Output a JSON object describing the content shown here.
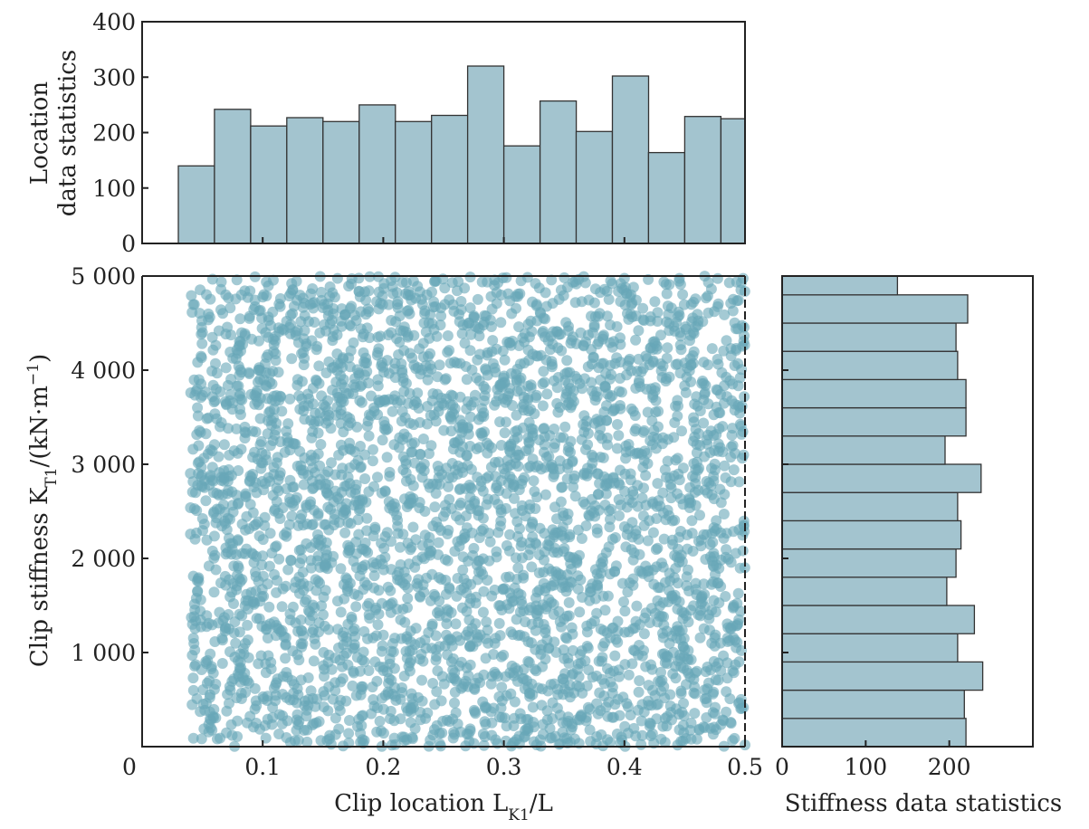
{
  "chart_data": [
    {
      "type": "bar",
      "panel": "top-histogram",
      "ylabel_lines": [
        "Location",
        "data statistics"
      ],
      "ylim": [
        0,
        400
      ],
      "yticks": [
        "0",
        "100",
        "200",
        "300",
        "400"
      ],
      "bin_edges": [
        0.03,
        0.06,
        0.09,
        0.12,
        0.15,
        0.18,
        0.21,
        0.24,
        0.27,
        0.3,
        0.33,
        0.36,
        0.39,
        0.42,
        0.45,
        0.48,
        0.5
      ],
      "values": [
        140,
        242,
        212,
        227,
        220,
        250,
        220,
        231,
        320,
        176,
        257,
        202,
        302,
        164,
        229,
        225
      ],
      "color": "#a3c4cf"
    },
    {
      "type": "scatter",
      "panel": "main-scatter",
      "xlabel": "Clip location L_K1/L",
      "ylabel": "Clip stiffness K_T1/(kN·m⁻¹)",
      "xlim": [
        0,
        0.5
      ],
      "ylim": [
        0,
        5000
      ],
      "xticks": [
        "0",
        "0.1",
        "0.2",
        "0.3",
        "0.4",
        "0.5"
      ],
      "yticks": [
        "1 000",
        "2 000",
        "3 000",
        "4 000",
        "5 000"
      ],
      "x_range": [
        0.04,
        0.5
      ],
      "y_range": [
        0,
        5000
      ],
      "n_points": 3550,
      "point_color": "#68a7b8",
      "grid": false
    },
    {
      "type": "bar",
      "panel": "right-histogram",
      "orientation": "horizontal",
      "xlabel": "Stiffness data statistics",
      "xticks": [
        "0",
        "100",
        "200"
      ],
      "bin_edges": [
        0,
        300,
        600,
        900,
        1200,
        1500,
        1800,
        2100,
        2400,
        2700,
        3000,
        3300,
        3600,
        3900,
        4200,
        4500,
        4800,
        5000
      ],
      "values": [
        220,
        218,
        240,
        210,
        230,
        197,
        208,
        214,
        210,
        238,
        195,
        220,
        220,
        210,
        208,
        222,
        138
      ],
      "color": "#a3c4cf"
    }
  ]
}
